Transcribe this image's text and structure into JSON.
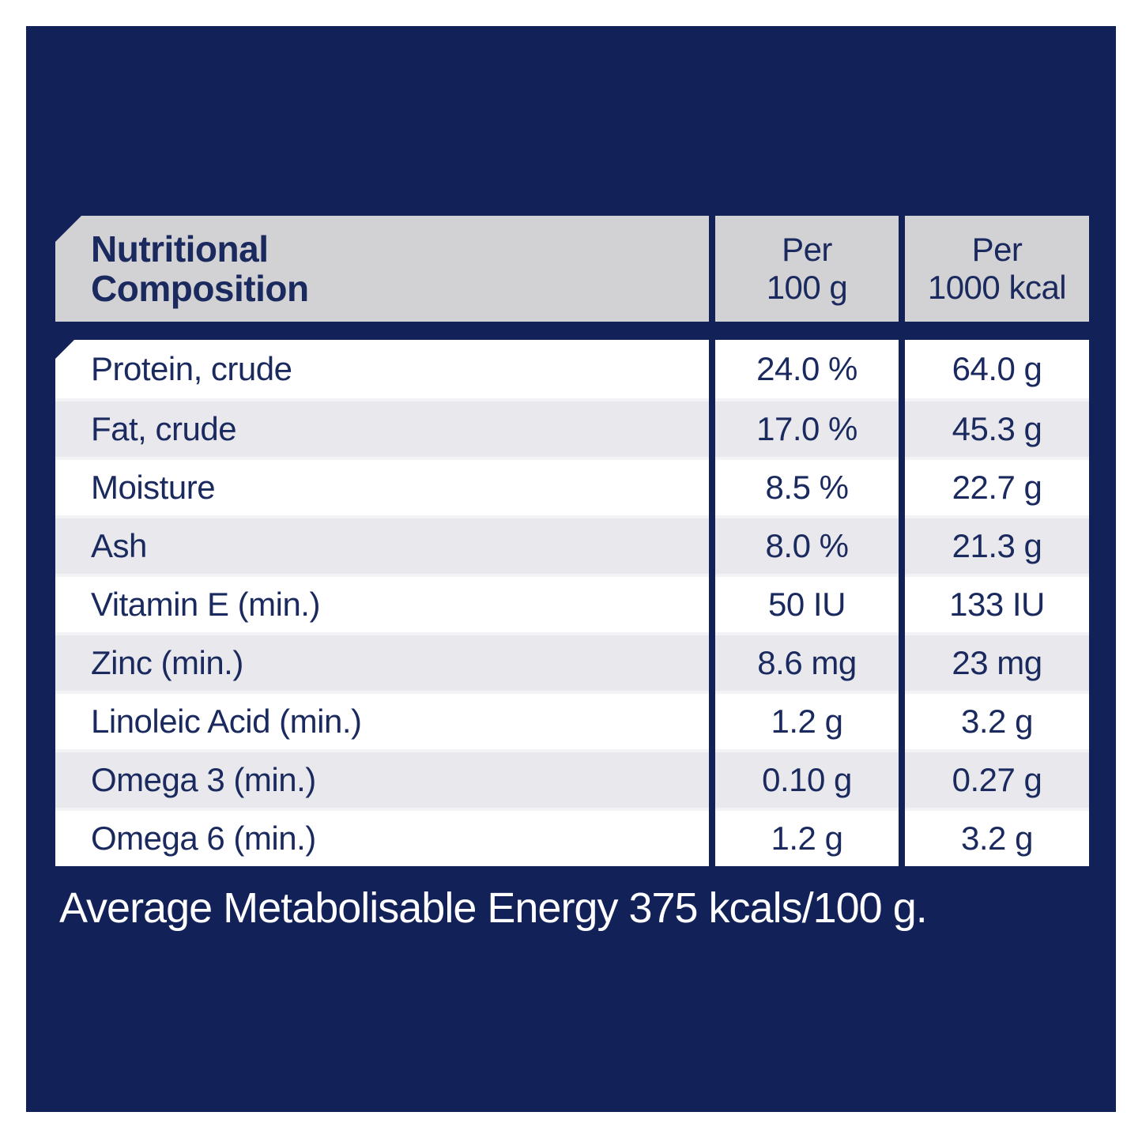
{
  "page": {
    "background": "#ffffff",
    "panel_color": "#122259",
    "text_navy": "#1b2a5e",
    "header_cell_bg": "#d2d2d5",
    "row_bg": "#ffffff",
    "row_alt_bg": "#e8e8ed",
    "footer_text_color": "#ffffff"
  },
  "table": {
    "title": "Nutritional Composition",
    "title_line1": "Nutritional",
    "title_line2": "Composition",
    "columns": [
      {
        "line1": "Per",
        "line2": "100 g"
      },
      {
        "line1": "Per",
        "line2": "1000 kcal"
      }
    ],
    "rows": [
      {
        "label": "Protein, crude",
        "per100g": "24.0 %",
        "per1000kcal": "64.0 g"
      },
      {
        "label": "Fat, crude",
        "per100g": "17.0 %",
        "per1000kcal": "45.3 g"
      },
      {
        "label": "Moisture",
        "per100g": "8.5 %",
        "per1000kcal": "22.7 g"
      },
      {
        "label": "Ash",
        "per100g": "8.0 %",
        "per1000kcal": "21.3 g"
      },
      {
        "label": "Vitamin E (min.)",
        "per100g": "50 IU",
        "per1000kcal": "133 IU"
      },
      {
        "label": "Zinc (min.)",
        "per100g": "8.6 mg",
        "per1000kcal": "23 mg"
      },
      {
        "label": "Linoleic Acid (min.)",
        "per100g": "1.2 g",
        "per1000kcal": "3.2 g"
      },
      {
        "label": "Omega 3 (min.)",
        "per100g": "0.10 g",
        "per1000kcal": "0.27 g"
      },
      {
        "label": "Omega 6 (min.)",
        "per100g": "1.2 g",
        "per1000kcal": "3.2 g"
      }
    ]
  },
  "footer": {
    "text": "Average Metabolisable Energy 375 kcals/100 g."
  }
}
